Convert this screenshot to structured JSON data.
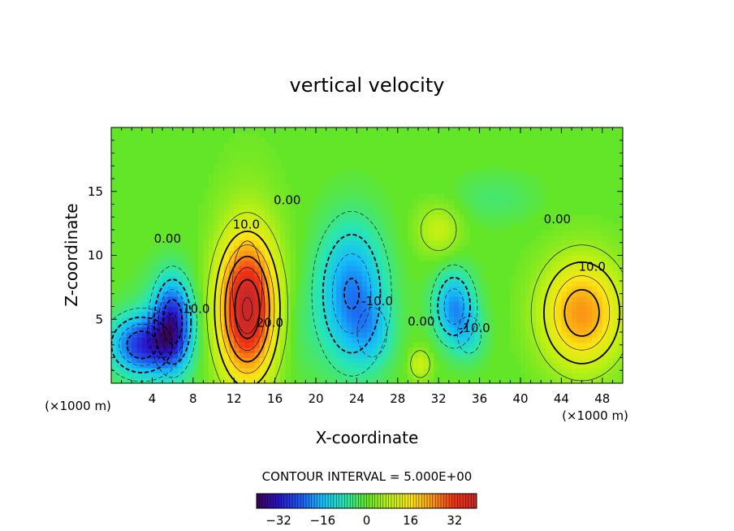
{
  "chart_data": {
    "type": "heatmap",
    "title": "vertical velocity",
    "xlabel": "X-coordinate",
    "ylabel": "Z-coordinate",
    "x_unit_left": "(×1000 m)",
    "x_unit_right": "(×1000 m)",
    "xlim": [
      0,
      50
    ],
    "ylim": [
      0,
      20
    ],
    "x_ticks": [
      4,
      8,
      12,
      16,
      20,
      24,
      28,
      32,
      36,
      40,
      44,
      48
    ],
    "x_tick_labels": [
      "4",
      "8",
      "12",
      "16",
      "20",
      "24",
      "28",
      "32",
      "36",
      "40",
      "44",
      "48"
    ],
    "y_ticks": [
      5,
      10,
      15
    ],
    "y_tick_labels": [
      "5",
      "10",
      "15"
    ],
    "contour_interval_text": "CONTOUR INTERVAL = 5.000E+00",
    "contour_interval": 5,
    "colorbar": {
      "range": [
        -40,
        40
      ],
      "ticks": [
        -32,
        -16,
        0,
        16,
        32
      ],
      "tick_labels": [
        "−32",
        "−16",
        "0",
        "16",
        "32"
      ]
    },
    "contour_labels": [
      {
        "text": "0.00",
        "x": 5.5,
        "y": 11.0
      },
      {
        "text": "10.0",
        "x": 13.2,
        "y": 12.1
      },
      {
        "text": "0.00",
        "x": 17.2,
        "y": 14.0
      },
      {
        "text": "20.0",
        "x": 15.5,
        "y": 4.4
      },
      {
        "text": "-10.0",
        "x": 8.1,
        "y": 5.5
      },
      {
        "text": "-10.0",
        "x": 26.0,
        "y": 6.1
      },
      {
        "text": "0.00",
        "x": 30.3,
        "y": 4.5
      },
      {
        "text": "-10.0",
        "x": 35.5,
        "y": 4.0
      },
      {
        "text": "0.00",
        "x": 43.6,
        "y": 12.5
      },
      {
        "text": "10.0",
        "x": 47.0,
        "y": 8.8
      }
    ],
    "cells": [
      {
        "x": 3.0,
        "y": 3.0,
        "sx": 2.2,
        "sy": 1.6,
        "value": -25
      },
      {
        "x": 6.0,
        "y": 4.8,
        "sx": 1.3,
        "sy": 2.4,
        "value": -26
      },
      {
        "x": 5.0,
        "y": 3.8,
        "sx": 2.5,
        "sy": 3.0,
        "value": -6
      },
      {
        "x": 13.3,
        "y": 5.8,
        "sx": 2.0,
        "sy": 3.8,
        "value": 36
      },
      {
        "x": 13.3,
        "y": 7.5,
        "sx": 2.4,
        "sy": 6.0,
        "value": 6
      },
      {
        "x": 23.5,
        "y": 7.0,
        "sx": 2.3,
        "sy": 3.8,
        "value": -21
      },
      {
        "x": 25.5,
        "y": 4.0,
        "sx": 1.5,
        "sy": 2.0,
        "value": -8
      },
      {
        "x": 33.5,
        "y": 6.0,
        "sx": 1.4,
        "sy": 2.0,
        "value": -19
      },
      {
        "x": 35.0,
        "y": 3.8,
        "sx": 1.2,
        "sy": 1.5,
        "value": -8
      },
      {
        "x": 46.0,
        "y": 5.5,
        "sx": 2.8,
        "sy": 3.0,
        "value": 24
      },
      {
        "x": 32.0,
        "y": 12.0,
        "sx": 1.6,
        "sy": 1.5,
        "value": 9
      },
      {
        "x": 30.2,
        "y": 1.5,
        "sx": 0.8,
        "sy": 0.9,
        "value": 10
      },
      {
        "x": 37.5,
        "y": 14.5,
        "sx": 3.0,
        "sy": 1.4,
        "value": -4
      },
      {
        "x": 18.0,
        "y": 4.0,
        "sx": 1.8,
        "sy": 3.0,
        "value": -3
      }
    ]
  }
}
